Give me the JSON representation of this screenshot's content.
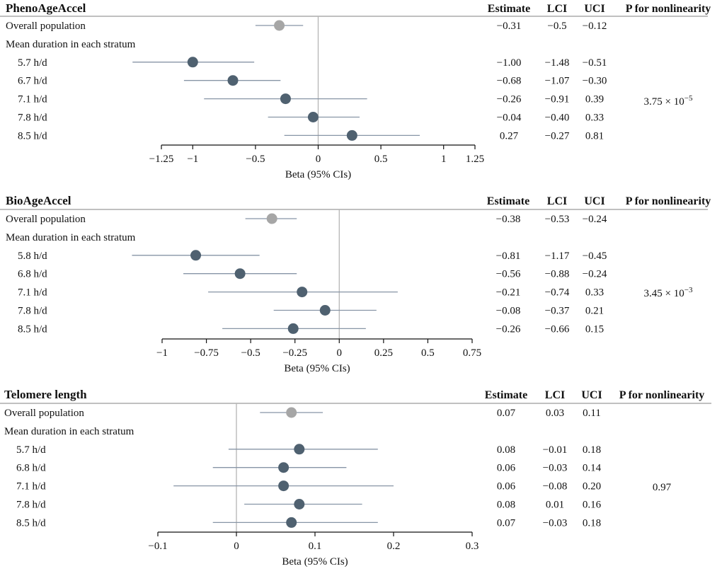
{
  "chart_data": [
    {
      "type": "forest",
      "title": "PhenoAgeAccel",
      "xlabel": "Beta (95% CIs)",
      "xlim": [
        -1.25,
        1.25
      ],
      "ticks": [
        -1.25,
        -1,
        -0.5,
        0,
        0.5,
        1,
        1.25
      ],
      "tick_labels": [
        "−1.25",
        "−1",
        "−0.5",
        "0",
        "0.5",
        "1",
        "1.25"
      ],
      "columns": [
        "Estimate",
        "LCI",
        "UCI",
        "P for nonlinearity"
      ],
      "group_label": "Mean duration in each stratum",
      "p_nonlinearity": "3.75 × 10",
      "p_exponent": "−5",
      "rows": [
        {
          "label": "Overall population",
          "estimate": -0.31,
          "lci": -0.5,
          "uci": -0.12,
          "estimate_text": "−0.31",
          "lci_text": "−0.5",
          "uci_text": "−0.12",
          "overall": true
        },
        {
          "label": "5.7 h/d",
          "estimate": -1.0,
          "lci": -1.48,
          "uci": -0.51,
          "estimate_text": "−1.00",
          "lci_text": "−1.48",
          "uci_text": "−0.51",
          "overall": false
        },
        {
          "label": "6.7 h/d",
          "estimate": -0.68,
          "lci": -1.07,
          "uci": -0.3,
          "estimate_text": "−0.68",
          "lci_text": "−1.07",
          "uci_text": "−0.30",
          "overall": false
        },
        {
          "label": "7.1 h/d",
          "estimate": -0.26,
          "lci": -0.91,
          "uci": 0.39,
          "estimate_text": "−0.26",
          "lci_text": "−0.91",
          "uci_text": "0.39",
          "overall": false
        },
        {
          "label": "7.8 h/d",
          "estimate": -0.04,
          "lci": -0.4,
          "uci": 0.33,
          "estimate_text": "−0.04",
          "lci_text": "−0.40",
          "uci_text": "0.33",
          "overall": false
        },
        {
          "label": "8.5 h/d",
          "estimate": 0.27,
          "lci": -0.27,
          "uci": 0.81,
          "estimate_text": "0.27",
          "lci_text": "−0.27",
          "uci_text": "0.81",
          "overall": false
        }
      ]
    },
    {
      "type": "forest",
      "title": "BioAgeAccel",
      "xlabel": "Beta (95% CIs)",
      "xlim": [
        -1,
        0.75
      ],
      "ticks": [
        -1,
        -0.75,
        -0.5,
        -0.25,
        0,
        0.25,
        0.5,
        0.75
      ],
      "tick_labels": [
        "−1",
        "−0.75",
        "−0.5",
        "−0.25",
        "0",
        "0.25",
        "0.5",
        "0.75"
      ],
      "columns": [
        "Estimate",
        "LCI",
        "UCI",
        "P for nonlinearity"
      ],
      "group_label": "Mean duration in each stratum",
      "p_nonlinearity": "3.45 × 10",
      "p_exponent": "−3",
      "rows": [
        {
          "label": "Overall population",
          "estimate": -0.38,
          "lci": -0.53,
          "uci": -0.24,
          "estimate_text": "−0.38",
          "lci_text": "−0.53",
          "uci_text": "−0.24",
          "overall": true
        },
        {
          "label": "5.8 h/d",
          "estimate": -0.81,
          "lci": -1.17,
          "uci": -0.45,
          "estimate_text": "−0.81",
          "lci_text": "−1.17",
          "uci_text": "−0.45",
          "overall": false
        },
        {
          "label": "6.8 h/d",
          "estimate": -0.56,
          "lci": -0.88,
          "uci": -0.24,
          "estimate_text": "−0.56",
          "lci_text": "−0.88",
          "uci_text": "−0.24",
          "overall": false
        },
        {
          "label": "7.1 h/d",
          "estimate": -0.21,
          "lci": -0.74,
          "uci": 0.33,
          "estimate_text": "−0.21",
          "lci_text": "−0.74",
          "uci_text": "0.33",
          "overall": false
        },
        {
          "label": "7.8 h/d",
          "estimate": -0.08,
          "lci": -0.37,
          "uci": 0.21,
          "estimate_text": "−0.08",
          "lci_text": "−0.37",
          "uci_text": "0.21",
          "overall": false
        },
        {
          "label": "8.5 h/d",
          "estimate": -0.26,
          "lci": -0.66,
          "uci": 0.15,
          "estimate_text": "−0.26",
          "lci_text": "−0.66",
          "uci_text": "0.15",
          "overall": false
        }
      ]
    },
    {
      "type": "forest",
      "title": "Telomere length",
      "xlabel": "Beta (95% CIs)",
      "xlim": [
        -0.1,
        0.3
      ],
      "ticks": [
        -0.1,
        0,
        0.1,
        0.2,
        0.3
      ],
      "tick_labels": [
        "−0.1",
        "0",
        "0.1",
        "0.2",
        "0.3"
      ],
      "columns": [
        "Estimate",
        "LCI",
        "UCI",
        "P for nonlinearity"
      ],
      "group_label": "Mean duration in each stratum",
      "p_nonlinearity": "0.97",
      "p_exponent": "",
      "rows": [
        {
          "label": "Overall population",
          "estimate": 0.07,
          "lci": 0.03,
          "uci": 0.11,
          "estimate_text": "0.07",
          "lci_text": "0.03",
          "uci_text": "0.11",
          "overall": true
        },
        {
          "label": "5.7 h/d",
          "estimate": 0.08,
          "lci": -0.01,
          "uci": 0.18,
          "estimate_text": "0.08",
          "lci_text": "−0.01",
          "uci_text": "0.18",
          "overall": false
        },
        {
          "label": "6.8 h/d",
          "estimate": 0.06,
          "lci": -0.03,
          "uci": 0.14,
          "estimate_text": "0.06",
          "lci_text": "−0.03",
          "uci_text": "0.14",
          "overall": false
        },
        {
          "label": "7.1 h/d",
          "estimate": 0.06,
          "lci": -0.08,
          "uci": 0.2,
          "estimate_text": "0.06",
          "lci_text": "−0.08",
          "uci_text": "0.20",
          "overall": false
        },
        {
          "label": "7.8 h/d",
          "estimate": 0.08,
          "lci": 0.01,
          "uci": 0.16,
          "estimate_text": "0.08",
          "lci_text": "0.01",
          "uci_text": "0.16",
          "overall": false
        },
        {
          "label": "8.5 h/d",
          "estimate": 0.07,
          "lci": -0.03,
          "uci": 0.18,
          "estimate_text": "0.07",
          "lci_text": "−0.03",
          "uci_text": "0.18",
          "overall": false
        }
      ]
    }
  ],
  "colors": {
    "overall_marker": "#a6a6a6",
    "stratum_marker": "#4f6170",
    "ci_line": "#8795a6",
    "zero_line": "#b5b5b5",
    "rule": "#9a9a9a",
    "axis": "#111111"
  }
}
